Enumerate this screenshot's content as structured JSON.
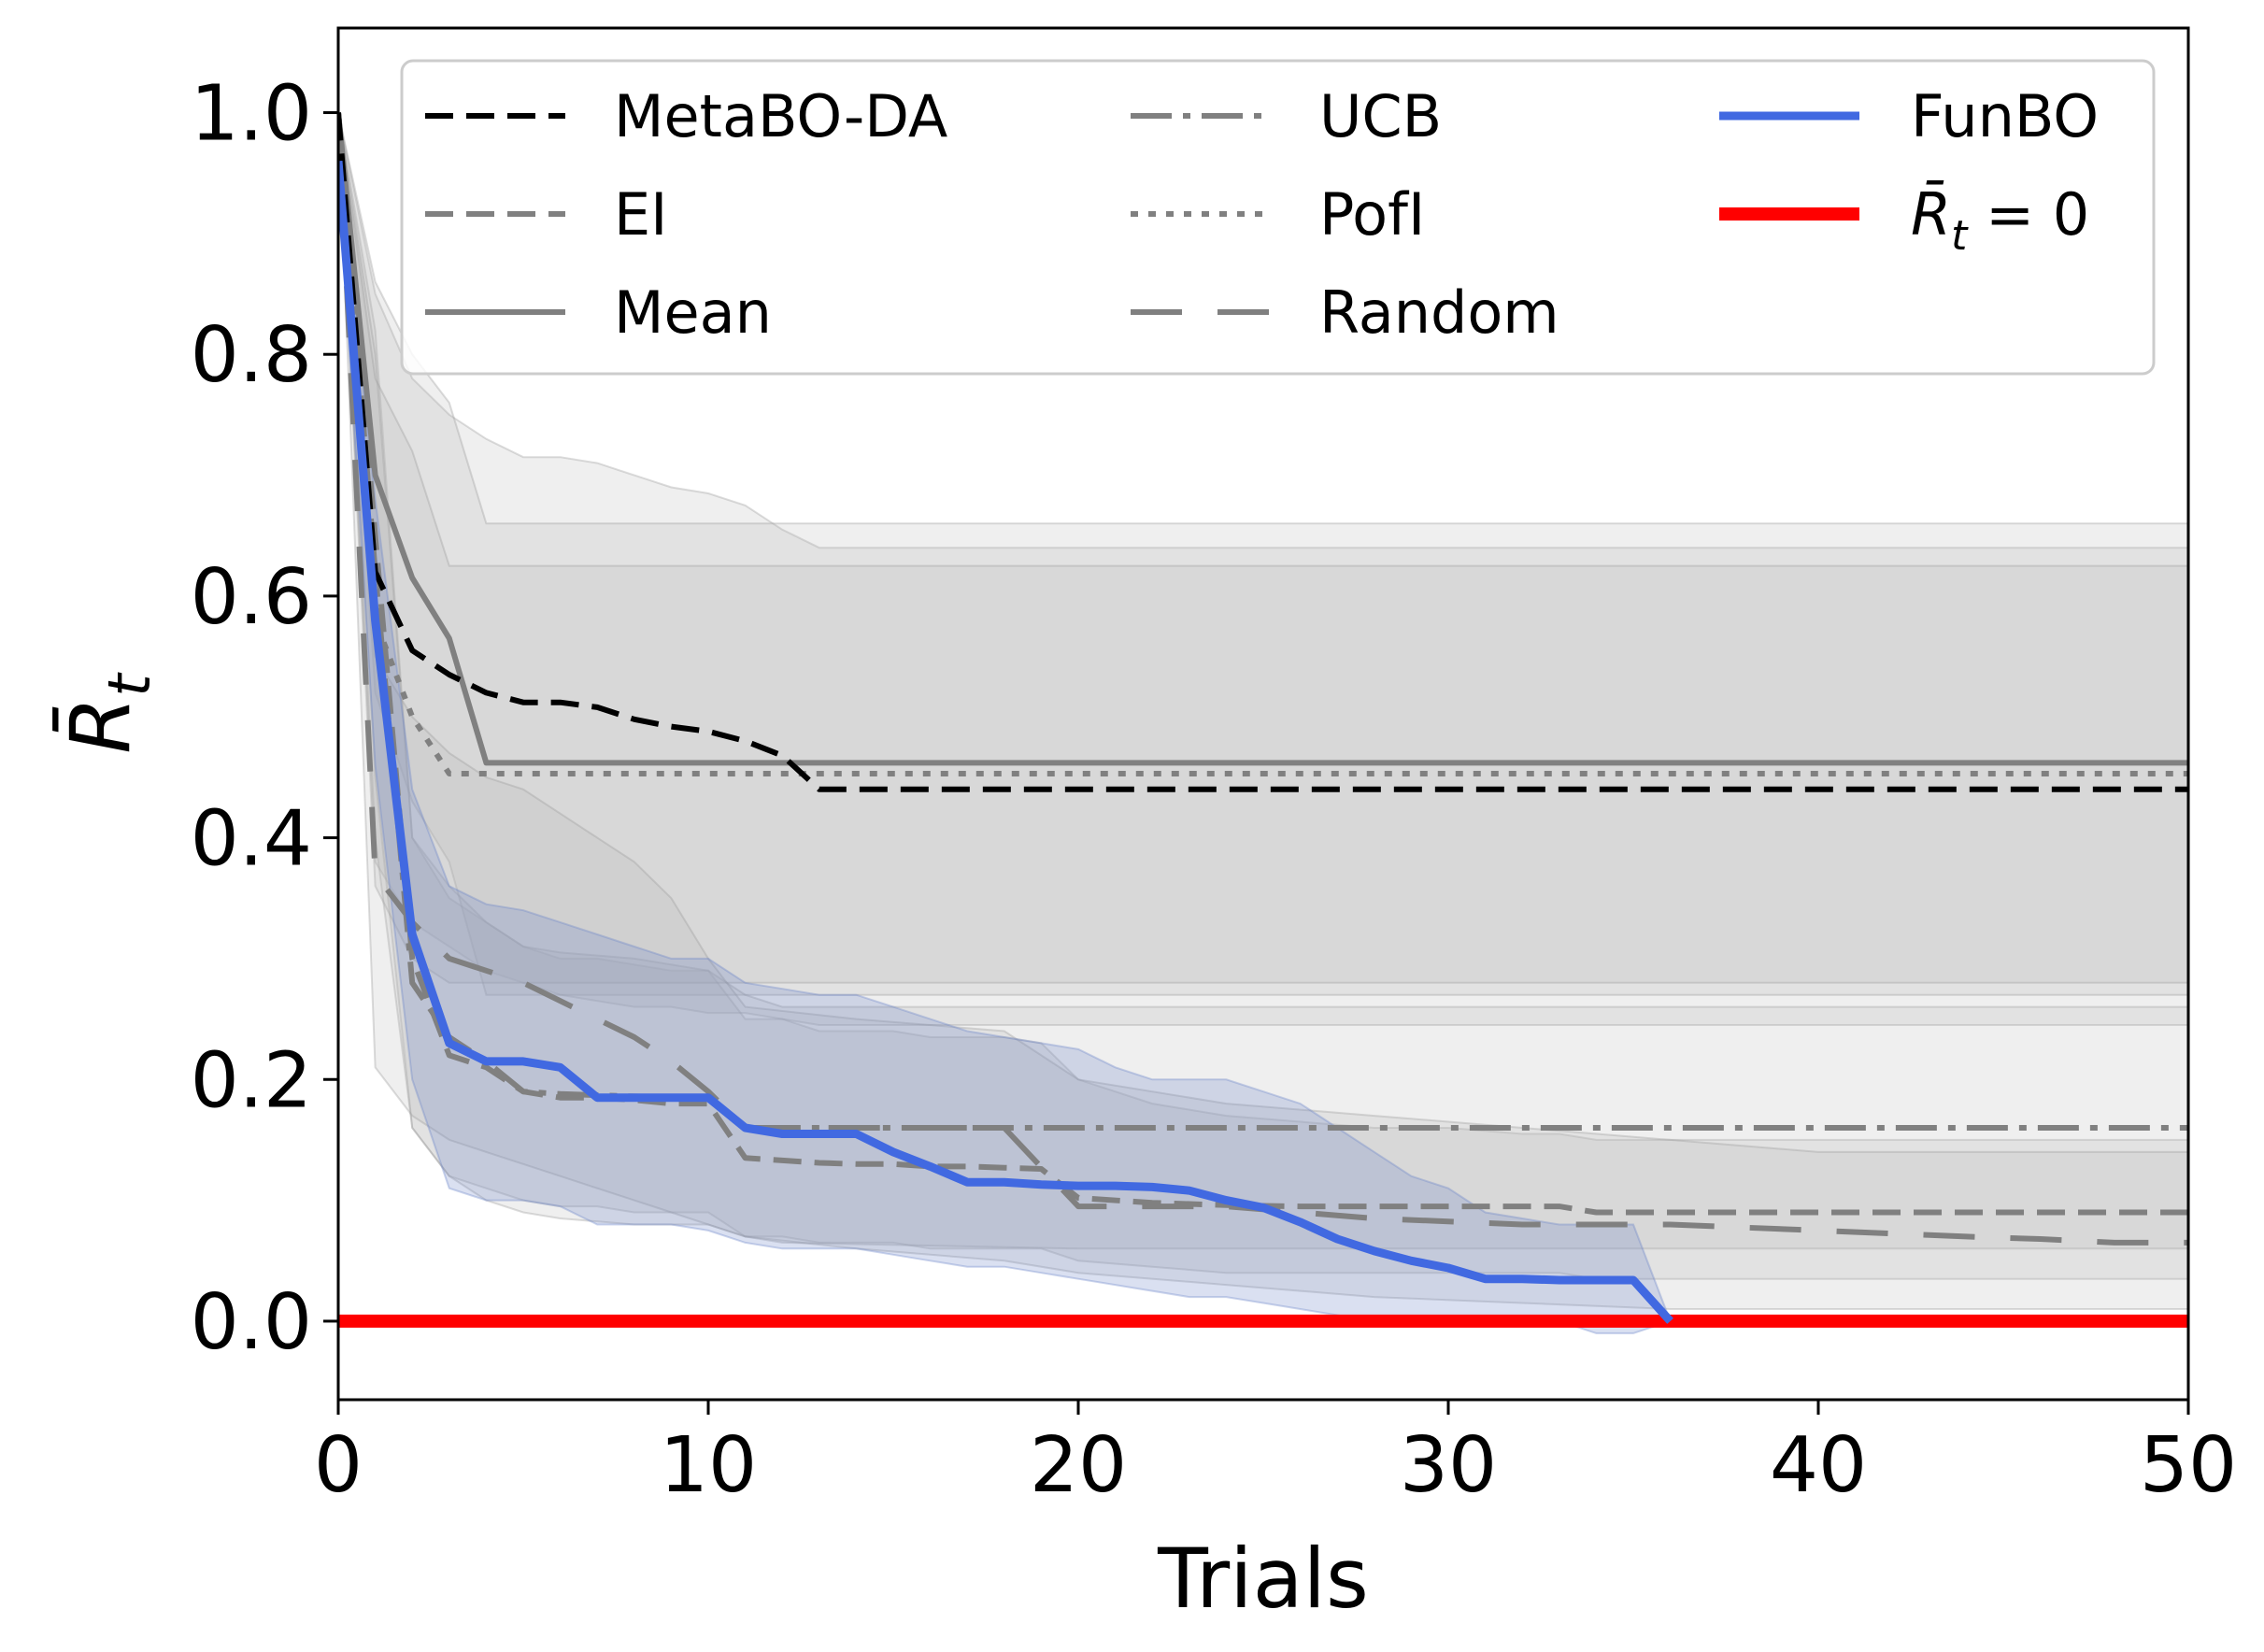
{
  "chart_data": {
    "type": "line",
    "title": "",
    "xlabel": "Trials",
    "ylabel": "R̄",
    "ylabel_subscript": "t",
    "xlim": [
      0,
      50
    ],
    "ylim": [
      -0.065,
      1.07
    ],
    "xticks": [
      "0",
      "10",
      "20",
      "30",
      "40",
      "50"
    ],
    "yticks": [
      "0.0",
      "0.2",
      "0.4",
      "0.6",
      "0.8",
      "1.0"
    ],
    "grid": false,
    "legend_position": "top",
    "series": [
      {
        "name": "MetaBO-DA",
        "color": "#000000",
        "style": "dashed",
        "x": [
          0,
          1,
          2,
          3,
          4,
          5,
          6,
          7,
          8,
          9,
          10,
          11,
          12,
          13,
          50
        ],
        "y": [
          1.0,
          0.62,
          0.555,
          0.535,
          0.52,
          0.512,
          0.512,
          0.508,
          0.498,
          0.492,
          0.488,
          0.48,
          0.468,
          0.44,
          0.44
        ],
        "band_upper": [
          1.0,
          0.85,
          0.78,
          0.75,
          0.73,
          0.715,
          0.715,
          0.71,
          0.7,
          0.69,
          0.685,
          0.675,
          0.655,
          0.64,
          0.64
        ],
        "band_lower": [
          1.0,
          0.38,
          0.33,
          0.31,
          0.29,
          0.28,
          0.27,
          0.265,
          0.26,
          0.26,
          0.255,
          0.255,
          0.25,
          0.245,
          0.245
        ]
      },
      {
        "name": "EI",
        "color": "#808080",
        "style": "dashed",
        "x": [
          0,
          1,
          2,
          3,
          4,
          5,
          6,
          7,
          8,
          9,
          10,
          11,
          12,
          13,
          14,
          15,
          16,
          17,
          18,
          19,
          20,
          22,
          24,
          26,
          28,
          30,
          32,
          33,
          34,
          36,
          38,
          40,
          42,
          44,
          46,
          48,
          50
        ],
        "y": [
          1.0,
          0.65,
          0.3,
          0.22,
          0.21,
          0.19,
          0.185,
          0.185,
          0.183,
          0.18,
          0.18,
          0.135,
          0.133,
          0.131,
          0.13,
          0.13,
          0.128,
          0.128,
          0.127,
          0.126,
          0.102,
          0.098,
          0.096,
          0.095,
          0.095,
          0.095,
          0.095,
          0.095,
          0.09,
          0.09,
          0.09,
          0.09,
          0.09,
          0.09,
          0.09,
          0.09,
          0.09
        ],
        "band_upper": [
          1.0,
          0.82,
          0.4,
          0.35,
          0.33,
          0.31,
          0.3,
          0.3,
          0.295,
          0.29,
          0.29,
          0.25,
          0.25,
          0.24,
          0.24,
          0.24,
          0.235,
          0.235,
          0.235,
          0.23,
          0.2,
          0.18,
          0.17,
          0.165,
          0.16,
          0.16,
          0.155,
          0.155,
          0.15,
          0.15,
          0.15,
          0.15,
          0.15,
          0.15,
          0.15,
          0.15,
          0.15
        ],
        "band_lower": [
          1.0,
          0.45,
          0.16,
          0.12,
          0.11,
          0.1,
          0.095,
          0.095,
          0.09,
          0.09,
          0.09,
          0.07,
          0.07,
          0.065,
          0.065,
          0.065,
          0.06,
          0.06,
          0.06,
          0.06,
          0.05,
          0.045,
          0.04,
          0.04,
          0.04,
          0.04,
          0.04,
          0.04,
          0.035,
          0.035,
          0.035,
          0.035,
          0.035,
          0.035,
          0.035,
          0.035,
          0.035
        ]
      },
      {
        "name": "Mean",
        "color": "#808080",
        "style": "solid",
        "x": [
          0,
          1,
          2,
          3,
          4,
          5,
          10,
          20,
          50
        ],
        "y": [
          1.0,
          0.7,
          0.615,
          0.565,
          0.462,
          0.462,
          0.462,
          0.462,
          0.462
        ],
        "band_upper": [
          1.0,
          0.86,
          0.8,
          0.76,
          0.66,
          0.66,
          0.66,
          0.66,
          0.66
        ],
        "band_lower": [
          1.0,
          0.52,
          0.43,
          0.38,
          0.27,
          0.27,
          0.27,
          0.27,
          0.27
        ]
      },
      {
        "name": "UCB",
        "color": "#808080",
        "style": "dashdot",
        "x": [
          0,
          1,
          2,
          3,
          4,
          5,
          6,
          8,
          10,
          11,
          12,
          20,
          30,
          50
        ],
        "y": [
          1.0,
          0.62,
          0.28,
          0.235,
          0.215,
          0.19,
          0.188,
          0.186,
          0.185,
          0.16,
          0.16,
          0.16,
          0.16,
          0.16
        ],
        "band_upper": [
          1.0,
          0.8,
          0.4,
          0.36,
          0.33,
          0.31,
          0.305,
          0.3,
          0.29,
          0.27,
          0.26,
          0.26,
          0.26,
          0.26
        ],
        "band_lower": [
          1.0,
          0.4,
          0.16,
          0.12,
          0.1,
          0.09,
          0.085,
          0.08,
          0.08,
          0.07,
          0.065,
          0.06,
          0.06,
          0.06
        ]
      },
      {
        "name": "PofI",
        "color": "#808080",
        "style": "dotted",
        "x": [
          0,
          1,
          2,
          3,
          4,
          5,
          10,
          20,
          50
        ],
        "y": [
          1.0,
          0.58,
          0.5,
          0.453,
          0.453,
          0.453,
          0.453,
          0.453,
          0.453
        ],
        "band_upper": [
          1.0,
          0.78,
          0.72,
          0.625,
          0.625,
          0.625,
          0.625,
          0.625,
          0.625
        ],
        "band_lower": [
          1.0,
          0.36,
          0.3,
          0.28,
          0.28,
          0.28,
          0.28,
          0.28,
          0.28
        ]
      },
      {
        "name": "Random",
        "color": "#808080",
        "style": "longdash",
        "x": [
          0,
          1,
          2,
          3,
          4,
          5,
          6,
          7,
          8,
          9,
          10,
          11,
          14,
          18,
          20,
          24,
          28,
          32,
          36,
          40,
          44,
          46,
          48,
          50
        ],
        "y": [
          1.0,
          0.37,
          0.33,
          0.3,
          0.29,
          0.28,
          0.265,
          0.25,
          0.235,
          0.215,
          0.19,
          0.16,
          0.16,
          0.16,
          0.095,
          0.095,
          0.085,
          0.08,
          0.08,
          0.075,
          0.07,
          0.068,
          0.065,
          0.065
        ],
        "band_upper": [
          1.0,
          0.55,
          0.5,
          0.47,
          0.45,
          0.44,
          0.42,
          0.4,
          0.38,
          0.35,
          0.3,
          0.26,
          0.25,
          0.24,
          0.2,
          0.18,
          0.17,
          0.16,
          0.15,
          0.14,
          0.14,
          0.14,
          0.14,
          0.14
        ],
        "band_lower": [
          1.0,
          0.21,
          0.17,
          0.15,
          0.14,
          0.13,
          0.12,
          0.11,
          0.1,
          0.09,
          0.08,
          0.07,
          0.06,
          0.05,
          0.04,
          0.03,
          0.02,
          0.015,
          0.01,
          0.01,
          0.01,
          0.01,
          0.01,
          0.01
        ]
      },
      {
        "name": "FunBO",
        "color": "#4169e1",
        "style": "solid",
        "x": [
          0,
          1,
          2,
          3,
          4,
          5,
          6,
          7,
          8,
          9,
          10,
          11,
          12,
          13,
          14,
          15,
          16,
          17,
          18,
          19,
          20,
          21,
          22,
          23,
          24,
          25,
          26,
          27,
          28,
          29,
          30,
          31,
          32,
          33,
          34,
          35,
          36
        ],
        "y": [
          0.96,
          0.58,
          0.32,
          0.23,
          0.215,
          0.215,
          0.21,
          0.185,
          0.185,
          0.185,
          0.185,
          0.16,
          0.155,
          0.155,
          0.155,
          0.14,
          0.128,
          0.115,
          0.115,
          0.113,
          0.112,
          0.112,
          0.111,
          0.108,
          0.1,
          0.094,
          0.082,
          0.068,
          0.058,
          0.05,
          0.044,
          0.035,
          0.035,
          0.034,
          0.034,
          0.034,
          0.0
        ],
        "band_upper": [
          0.97,
          0.68,
          0.44,
          0.36,
          0.345,
          0.34,
          0.33,
          0.32,
          0.31,
          0.3,
          0.3,
          0.28,
          0.275,
          0.27,
          0.27,
          0.26,
          0.25,
          0.24,
          0.235,
          0.23,
          0.225,
          0.21,
          0.2,
          0.2,
          0.2,
          0.19,
          0.18,
          0.16,
          0.14,
          0.12,
          0.11,
          0.09,
          0.085,
          0.08,
          0.08,
          0.08,
          0.0
        ],
        "band_lower": [
          0.95,
          0.46,
          0.2,
          0.11,
          0.1,
          0.1,
          0.095,
          0.08,
          0.08,
          0.08,
          0.075,
          0.065,
          0.06,
          0.06,
          0.06,
          0.055,
          0.05,
          0.045,
          0.045,
          0.04,
          0.035,
          0.03,
          0.025,
          0.02,
          0.02,
          0.015,
          0.01,
          0.005,
          0.0,
          0.0,
          0.0,
          0.0,
          0.0,
          0.0,
          -0.01,
          -0.01,
          0.0
        ]
      },
      {
        "name": "R̄_t = 0",
        "color": "#ff0000",
        "style": "solid",
        "x": [
          0,
          50
        ],
        "y": [
          0,
          0
        ]
      }
    ],
    "legend": [
      {
        "label": "MetaBO-DA",
        "style": "dashed",
        "color": "#000000"
      },
      {
        "label": "EI",
        "style": "dashed",
        "color": "#808080"
      },
      {
        "label": "Mean",
        "style": "solid",
        "color": "#808080"
      },
      {
        "label": "UCB",
        "style": "dashdot",
        "color": "#808080"
      },
      {
        "label": "PofI",
        "style": "dotted",
        "color": "#808080"
      },
      {
        "label": "Random",
        "style": "longdash",
        "color": "#808080"
      },
      {
        "label": "FunBO",
        "style": "solid",
        "color": "#4169e1"
      },
      {
        "label": "R̄",
        "subscript": "t",
        "suffix": " = 0",
        "style": "solid",
        "color": "#ff0000"
      }
    ]
  }
}
